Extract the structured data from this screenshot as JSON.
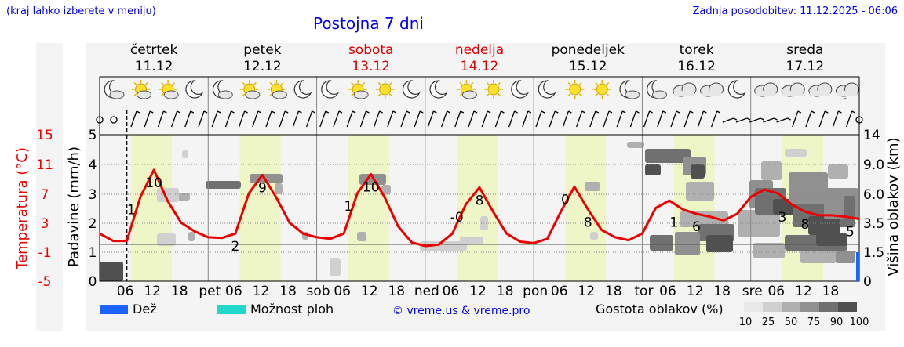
{
  "header": {
    "hint": "(kraj lahko izberete v meniju)",
    "title": "Postojna 7 dni",
    "updated": "Zadnja posodobitev: 11.12.2025 - 06:06"
  },
  "footer": {
    "rain_label": "Dež",
    "storm_label": "Možnost ploh",
    "credit": "© vreme.us & vreme.pro",
    "cloud_label": "Gostota oblakov (%)",
    "cloud_ticks": [
      "10",
      "25",
      "50",
      "75",
      "90",
      "100"
    ]
  },
  "colors": {
    "temp": "#ee0000",
    "rain": "#1a63ff",
    "storm": "#22d8c8",
    "weekend": "#dd0000",
    "day_band": "#eef5c6",
    "cloud_scale": [
      "#e8e8e8",
      "#d0d0d0",
      "#b0b0b0",
      "#909090",
      "#707070",
      "#505050"
    ]
  },
  "chart_data": {
    "type": "line",
    "title": "Postojna 7 dni",
    "ylabel_left_temp": "Temperatura (°C)",
    "ylabel_left_rain": "Padavine (mm/h)",
    "ylabel_right": "Višina oblakov (km)",
    "temp_ticks": [
      "15",
      "11",
      "7",
      "3",
      "-1",
      "-5"
    ],
    "rain_ticks": [
      "5",
      "4",
      "3",
      "2",
      "1",
      "0"
    ],
    "cloud_height_ticks": [
      "14",
      "9.0",
      "6.0",
      "3.5",
      "1.5",
      "0"
    ],
    "temp_range": [
      -5,
      15
    ],
    "rain_range": [
      0,
      5
    ],
    "days": [
      {
        "name": "četrtek",
        "date": "11.12",
        "weekend": false
      },
      {
        "name": "petek",
        "date": "12.12",
        "weekend": false
      },
      {
        "name": "sobota",
        "date": "13.12",
        "weekend": true
      },
      {
        "name": "nedelja",
        "date": "14.12",
        "weekend": true
      },
      {
        "name": "ponedeljek",
        "date": "15.12",
        "weekend": false
      },
      {
        "name": "torek",
        "date": "16.12",
        "weekend": false
      },
      {
        "name": "sreda",
        "date": "17.12",
        "weekend": false
      }
    ],
    "day_abbr": [
      "",
      "pet",
      "sob",
      "ned",
      "pon",
      "tor",
      "sre"
    ],
    "hour_labels": [
      "06",
      "12",
      "18"
    ],
    "temperature_series": {
      "name": "Temperatura",
      "hours": [
        0,
        3,
        6,
        9,
        12,
        15,
        18,
        21,
        24,
        27,
        30,
        33,
        36,
        39,
        42,
        45,
        48,
        51,
        54,
        57,
        60,
        63,
        66,
        69,
        72,
        75,
        78,
        81,
        84,
        87,
        90,
        93,
        96,
        99,
        102,
        105,
        108,
        111,
        114,
        117,
        120,
        123,
        126,
        129,
        132,
        135,
        138,
        141,
        144,
        147,
        150,
        153,
        156,
        159,
        162,
        165,
        168
      ],
      "values": [
        1.5,
        0.5,
        0.5,
        6.5,
        10.2,
        6.0,
        3.0,
        1.8,
        1.0,
        0.9,
        1.5,
        7.0,
        9.5,
        6.5,
        3.0,
        1.5,
        1.0,
        0.8,
        1.5,
        7.0,
        9.6,
        6.5,
        2.5,
        0.3,
        -0.2,
        0.0,
        1.5,
        5.5,
        7.8,
        4.5,
        1.5,
        0.4,
        0.2,
        0.8,
        4.5,
        7.9,
        4.8,
        2.0,
        1.0,
        0.6,
        1.5,
        5.0,
        6.0,
        4.8,
        4.2,
        3.8,
        3.3,
        4.2,
        6.5,
        7.5,
        7.0,
        5.5,
        4.5,
        4.0,
        4.0,
        3.8,
        3.5
      ]
    },
    "temperature_labels": [
      {
        "hour": 7,
        "text": "1"
      },
      {
        "hour": 12,
        "text": "10"
      },
      {
        "hour": 30,
        "text": "2"
      },
      {
        "hour": 36,
        "text": "9"
      },
      {
        "hour": 55,
        "text": "1"
      },
      {
        "hour": 60,
        "text": "10"
      },
      {
        "hour": 79,
        "text": "-0"
      },
      {
        "hour": 84,
        "text": "8"
      },
      {
        "hour": 103,
        "text": "0"
      },
      {
        "hour": 108,
        "text": "8"
      },
      {
        "hour": 127,
        "text": "1"
      },
      {
        "hour": 132,
        "text": "6"
      },
      {
        "hour": 151,
        "text": "3"
      },
      {
        "hour": 156,
        "text": "8"
      },
      {
        "hour": 166,
        "text": "5"
      }
    ],
    "sky": [
      "night-cloud",
      "sun-cloud",
      "sun-cloud",
      "moon",
      "night-cloud",
      "sun-cloud",
      "sun-cloud",
      "moon",
      "moon",
      "sun-cloud",
      "sun",
      "moon",
      "moon",
      "sun-cloud",
      "sun",
      "moon",
      "moon",
      "sun",
      "sun",
      "night-cloud",
      "night-cloud",
      "cloud",
      "cloud",
      "moon",
      "cloud",
      "cloud",
      "cloud",
      "rain-cloud"
    ],
    "legend": [
      "Dež",
      "Možnost ploh"
    ]
  }
}
